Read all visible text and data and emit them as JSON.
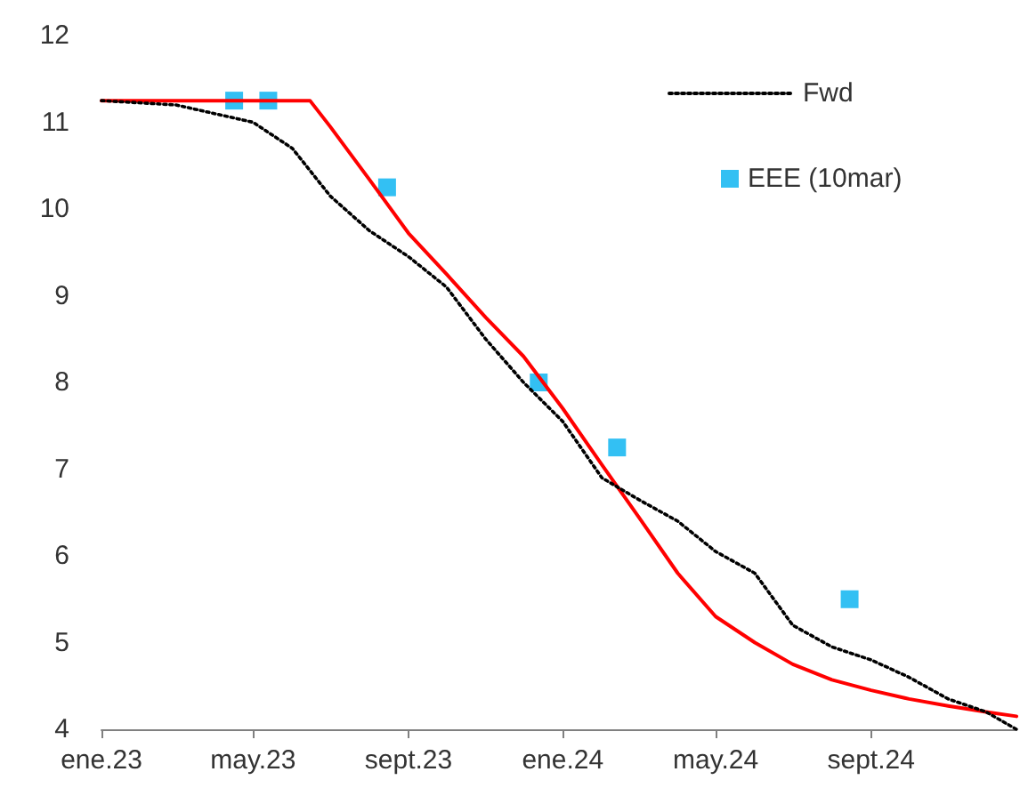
{
  "chart_data": {
    "type": "line",
    "legend": "top right",
    "grid": false,
    "xlim": [
      "2023-01-01",
      "2024-12-25"
    ],
    "xticks": [
      {
        "value": "2023-01-01",
        "label": "ene.23"
      },
      {
        "value": "2023-05-01",
        "label": "may.23"
      },
      {
        "value": "2023-09-01",
        "label": "sept.23"
      },
      {
        "value": "2024-01-01",
        "label": "ene.24"
      },
      {
        "value": "2024-05-01",
        "label": "may.24"
      },
      {
        "value": "2024-09-01",
        "label": "sept.24"
      }
    ],
    "ylim": [
      4,
      12
    ],
    "yticks": [
      4,
      5,
      6,
      7,
      8,
      9,
      10,
      11,
      12
    ],
    "series": [
      {
        "color": "#ff0000",
        "line_style": "solid",
        "marker": "none",
        "x": [
          "2023-01-01",
          "2023-02-01",
          "2023-03-01",
          "2023-04-01",
          "2023-05-01",
          "2023-06-01",
          "2023-06-15",
          "2023-07-01",
          "2023-08-01",
          "2023-09-01",
          "2023-10-01",
          "2023-11-01",
          "2023-12-01",
          "2024-01-01",
          "2024-02-01",
          "2024-03-01",
          "2024-04-01",
          "2024-05-01",
          "2024-06-01",
          "2024-07-01",
          "2024-08-01",
          "2024-09-01",
          "2024-10-01",
          "2024-11-01",
          "2024-12-01",
          "2024-12-25"
        ],
        "values": [
          11.25,
          11.25,
          11.25,
          11.25,
          11.25,
          11.25,
          11.25,
          10.95,
          10.34,
          9.72,
          9.25,
          8.75,
          8.3,
          7.7,
          7.05,
          6.45,
          5.8,
          5.3,
          5.0,
          4.75,
          4.57,
          4.45,
          4.35,
          4.27,
          4.2,
          4.15
        ]
      },
      {
        "name": "Fwd",
        "color": "#000000",
        "line_style": "dotted",
        "marker": "none",
        "x": [
          "2023-01-01",
          "2023-03-01",
          "2023-05-01",
          "2023-06-01",
          "2023-07-01",
          "2023-08-01",
          "2023-09-01",
          "2023-10-01",
          "2023-11-01",
          "2023-12-01",
          "2024-01-01",
          "2024-02-01",
          "2024-03-01",
          "2024-04-01",
          "2024-05-01",
          "2024-06-01",
          "2024-07-01",
          "2024-08-01",
          "2024-09-01",
          "2024-10-01",
          "2024-11-01",
          "2024-12-01",
          "2024-12-25"
        ],
        "values": [
          11.25,
          11.2,
          11.0,
          10.7,
          10.15,
          9.75,
          9.45,
          9.1,
          8.5,
          8.0,
          7.55,
          6.9,
          6.65,
          6.4,
          6.05,
          5.8,
          5.2,
          4.95,
          4.8,
          4.6,
          4.35,
          4.2,
          4.0
        ]
      },
      {
        "type": "scatter",
        "name": "EEE (10mar)",
        "color": "#00b0f0",
        "marker": "square",
        "x": [
          "2023-04-16",
          "2023-05-13",
          "2023-08-15",
          "2023-12-13",
          "2024-02-13",
          "2024-08-15"
        ],
        "values": [
          11.25,
          11.25,
          10.25,
          8.0,
          7.25,
          5.5
        ]
      }
    ]
  }
}
